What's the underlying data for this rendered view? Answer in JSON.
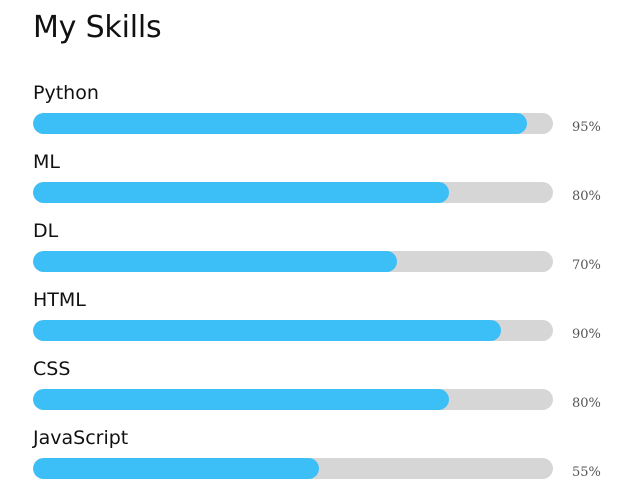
{
  "title": "My Skills",
  "colors": {
    "fill": "#3bbff6",
    "track": "#d6d6d6"
  },
  "skills": [
    {
      "name": "Python",
      "percent_label": "95%",
      "value": 95
    },
    {
      "name": "ML",
      "percent_label": "80%",
      "value": 80
    },
    {
      "name": "DL",
      "percent_label": "70%",
      "value": 70
    },
    {
      "name": "HTML",
      "percent_label": "90%",
      "value": 90
    },
    {
      "name": "CSS",
      "percent_label": "80%",
      "value": 80
    },
    {
      "name": "JavaScript",
      "percent_label": "55%",
      "value": 55
    }
  ]
}
